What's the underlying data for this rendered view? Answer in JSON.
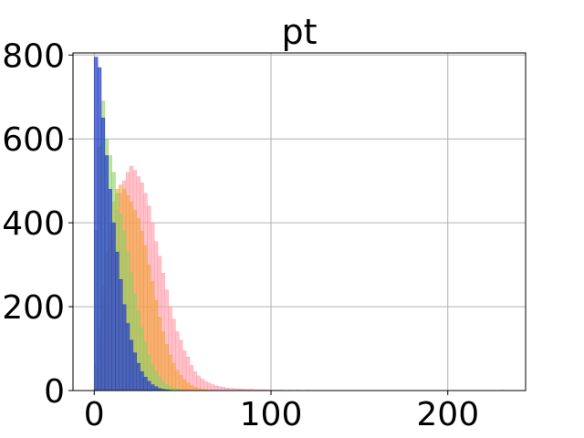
{
  "chart_data": {
    "type": "bar",
    "title": "pt",
    "xlabel": "",
    "ylabel": "",
    "xlim": [
      -12,
      244
    ],
    "ylim": [
      0,
      805
    ],
    "grid": true,
    "x_ticks": [
      0,
      100,
      200
    ],
    "x_tick_labels": [
      "0",
      "100",
      "200"
    ],
    "y_ticks": [
      0,
      200,
      400,
      600,
      800
    ],
    "y_tick_labels": [
      "0",
      "200",
      "400",
      "600",
      "800"
    ],
    "bin_width": 2,
    "series": [
      {
        "color": "#ff9aa8",
        "opacity": 0.6,
        "bins": [
          [
            0,
            40
          ],
          [
            2,
            120
          ],
          [
            4,
            220
          ],
          [
            6,
            300
          ],
          [
            8,
            360
          ],
          [
            10,
            400
          ],
          [
            12,
            430
          ],
          [
            14,
            470
          ],
          [
            16,
            500
          ],
          [
            18,
            520
          ],
          [
            20,
            535
          ],
          [
            22,
            525
          ],
          [
            24,
            510
          ],
          [
            26,
            495
          ],
          [
            28,
            470
          ],
          [
            30,
            440
          ],
          [
            32,
            400
          ],
          [
            34,
            355
          ],
          [
            36,
            320
          ],
          [
            38,
            280
          ],
          [
            40,
            240
          ],
          [
            42,
            200
          ],
          [
            44,
            170
          ],
          [
            46,
            140
          ],
          [
            48,
            120
          ],
          [
            50,
            95
          ],
          [
            52,
            80
          ],
          [
            54,
            60
          ],
          [
            56,
            45
          ],
          [
            58,
            35
          ],
          [
            60,
            28
          ],
          [
            62,
            22
          ],
          [
            64,
            18
          ],
          [
            66,
            14
          ],
          [
            68,
            11
          ],
          [
            70,
            9
          ],
          [
            72,
            8
          ],
          [
            74,
            6
          ],
          [
            76,
            5
          ],
          [
            78,
            5
          ],
          [
            80,
            4
          ],
          [
            82,
            4
          ],
          [
            84,
            3
          ],
          [
            86,
            3
          ],
          [
            88,
            3
          ],
          [
            90,
            2
          ],
          [
            92,
            2
          ],
          [
            94,
            2
          ],
          [
            96,
            2
          ],
          [
            98,
            1
          ],
          [
            100,
            1
          ],
          [
            102,
            1
          ],
          [
            104,
            1
          ],
          [
            106,
            1
          ],
          [
            110,
            1
          ],
          [
            114,
            1
          ],
          [
            120,
            1
          ],
          [
            230,
            1
          ]
        ]
      },
      {
        "color": "#f0a030",
        "opacity": 0.55,
        "bins": [
          [
            0,
            60
          ],
          [
            2,
            150
          ],
          [
            4,
            250
          ],
          [
            6,
            330
          ],
          [
            8,
            400
          ],
          [
            10,
            450
          ],
          [
            12,
            480
          ],
          [
            14,
            490
          ],
          [
            16,
            480
          ],
          [
            18,
            465
          ],
          [
            20,
            450
          ],
          [
            22,
            430
          ],
          [
            24,
            410
          ],
          [
            26,
            380
          ],
          [
            28,
            345
          ],
          [
            30,
            300
          ],
          [
            32,
            260
          ],
          [
            34,
            215
          ],
          [
            36,
            175
          ],
          [
            38,
            140
          ],
          [
            40,
            110
          ],
          [
            42,
            85
          ],
          [
            44,
            65
          ],
          [
            46,
            48
          ],
          [
            48,
            36
          ],
          [
            50,
            26
          ],
          [
            52,
            18
          ],
          [
            54,
            12
          ],
          [
            56,
            8
          ],
          [
            58,
            5
          ],
          [
            60,
            3
          ],
          [
            62,
            2
          ],
          [
            64,
            1
          ]
        ]
      },
      {
        "color": "#8fd060",
        "opacity": 0.6,
        "bins": [
          [
            0,
            380
          ],
          [
            2,
            580
          ],
          [
            4,
            690
          ],
          [
            6,
            600
          ],
          [
            8,
            560
          ],
          [
            10,
            520
          ],
          [
            12,
            470
          ],
          [
            14,
            420
          ],
          [
            16,
            380
          ],
          [
            18,
            330
          ],
          [
            20,
            280
          ],
          [
            22,
            230
          ],
          [
            24,
            190
          ],
          [
            26,
            150
          ],
          [
            28,
            115
          ],
          [
            30,
            85
          ],
          [
            32,
            62
          ],
          [
            34,
            45
          ],
          [
            36,
            32
          ],
          [
            38,
            22
          ],
          [
            40,
            15
          ],
          [
            42,
            10
          ],
          [
            44,
            6
          ],
          [
            46,
            4
          ],
          [
            48,
            2
          ],
          [
            50,
            1
          ]
        ]
      },
      {
        "color": "#2a45c8",
        "opacity": 0.75,
        "bins": [
          [
            0,
            795
          ],
          [
            2,
            770
          ],
          [
            4,
            650
          ],
          [
            6,
            560
          ],
          [
            8,
            480
          ],
          [
            10,
            400
          ],
          [
            12,
            330
          ],
          [
            14,
            265
          ],
          [
            16,
            205
          ],
          [
            18,
            160
          ],
          [
            20,
            120
          ],
          [
            22,
            90
          ],
          [
            24,
            65
          ],
          [
            26,
            45
          ],
          [
            28,
            32
          ],
          [
            30,
            22
          ],
          [
            32,
            14
          ],
          [
            34,
            9
          ],
          [
            36,
            5
          ],
          [
            38,
            3
          ],
          [
            40,
            2
          ],
          [
            42,
            1
          ]
        ]
      }
    ]
  }
}
